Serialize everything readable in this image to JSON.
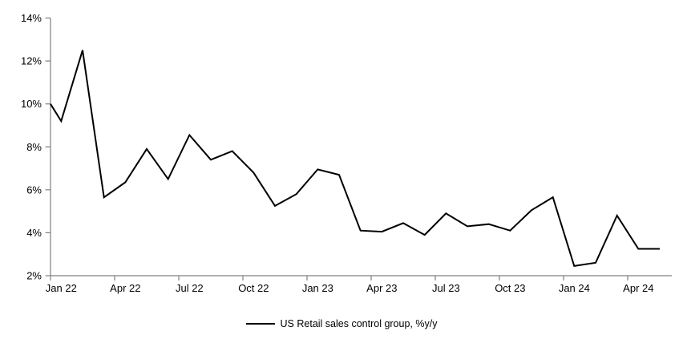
{
  "legend": {
    "label": "US Retail sales control group, %y/y"
  },
  "chart_data": {
    "type": "line",
    "title": "",
    "series": [
      {
        "name": "US Retail sales control group, %y/y",
        "values": [
          9.2,
          12.5,
          5.65,
          6.35,
          7.9,
          6.5,
          8.55,
          7.4,
          7.8,
          6.8,
          5.25,
          5.8,
          6.95,
          6.7,
          4.1,
          4.05,
          4.45,
          3.9,
          4.9,
          4.3,
          4.4,
          4.1,
          5.05,
          5.65,
          2.45,
          2.6,
          4.8,
          3.25,
          3.25
        ]
      }
    ],
    "x": [
      "Jan 22",
      "Feb 22",
      "Mar 22",
      "Apr 22",
      "May 22",
      "Jun 22",
      "Jul 22",
      "Aug 22",
      "Sep 22",
      "Oct 22",
      "Nov 22",
      "Dec 22",
      "Jan 23",
      "Feb 23",
      "Mar 23",
      "Apr 23",
      "May 23",
      "Jun 23",
      "Jul 23",
      "Aug 23",
      "Sep 23",
      "Oct 23",
      "Nov 23",
      "Dec 23",
      "Jan 24",
      "Feb 24",
      "Mar 24",
      "Apr 24",
      "May 24"
    ],
    "axis_entry": {
      "value": 10.0,
      "note": "line is clipped at left axis, entering at 10% before the Jan 22 point"
    },
    "ylim": [
      2,
      14
    ],
    "ytick_labels": [
      "2%",
      "4%",
      "6%",
      "8%",
      "10%",
      "12%",
      "14%"
    ],
    "ytick_values": [
      2,
      4,
      6,
      8,
      10,
      12,
      14
    ],
    "xtick_labels": [
      "Jan 22",
      "Apr 22",
      "Jul 22",
      "Oct 22",
      "Jan 23",
      "Apr 23",
      "Jul 23",
      "Oct 23",
      "Jan 24",
      "Apr 24"
    ],
    "xtick_month_indices": [
      0,
      3,
      6,
      9,
      12,
      15,
      18,
      21,
      24,
      27
    ],
    "grid": false,
    "legend_position": "bottom-center",
    "line_color": "#000000",
    "axis_color": "#808080",
    "label_color": "#000000"
  }
}
